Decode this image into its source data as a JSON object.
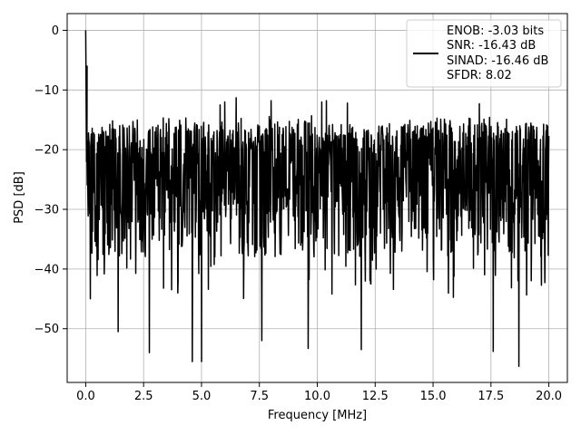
{
  "chart_data": {
    "type": "line",
    "title": "",
    "xlabel": "Frequency [MHz]",
    "ylabel": "PSD [dB]",
    "xlim": [
      -0.8,
      20.8
    ],
    "ylim": [
      -59.0,
      2.8
    ],
    "xticks": [
      0.0,
      2.5,
      5.0,
      7.5,
      10.0,
      12.5,
      15.0,
      17.5,
      20.0
    ],
    "xtick_labels": [
      "0.0",
      "2.5",
      "5.0",
      "7.5",
      "10.0",
      "12.5",
      "15.0",
      "17.5",
      "20.0"
    ],
    "yticks": [
      0,
      -10,
      -20,
      -30,
      -40,
      -50
    ],
    "ytick_labels": [
      "0",
      "−10",
      "−20",
      "−30",
      "−40",
      "−50"
    ],
    "grid": true,
    "legend_position": "top-right",
    "legend": {
      "lines": [
        "ENOB: -3.03 bits",
        "SNR: -16.43 dB",
        "SINAD: -16.46 dB",
        "SFDR: 8.02"
      ]
    },
    "series": [
      {
        "color": "#000000",
        "x_range": [
          0.0,
          20.0
        ],
        "num_points": 1500,
        "typical_band_db": [
          -35,
          -16
        ],
        "mean_db": -26,
        "peak": {
          "x": 0.0,
          "y": 0.0
        },
        "near_dc": [
          {
            "x": 0.02,
            "y": -11
          },
          {
            "x": 0.04,
            "y": -22
          },
          {
            "x": 0.06,
            "y": -6
          }
        ],
        "notable_maxima": [
          {
            "x": 5.0,
            "y": -12.5
          },
          {
            "x": 5.8,
            "y": -12.5
          },
          {
            "x": 6.0,
            "y": -12
          },
          {
            "x": 6.5,
            "y": -11.3
          },
          {
            "x": 8.0,
            "y": -11.8
          },
          {
            "x": 10.2,
            "y": -12
          },
          {
            "x": 10.4,
            "y": -11.8
          },
          {
            "x": 11.3,
            "y": -12.2
          },
          {
            "x": 17.0,
            "y": -12.3
          }
        ],
        "notable_minima": [
          {
            "x": 1.4,
            "y": -50.5
          },
          {
            "x": 2.75,
            "y": -54
          },
          {
            "x": 4.6,
            "y": -55.5
          },
          {
            "x": 5.0,
            "y": -55.5
          },
          {
            "x": 7.6,
            "y": -52
          },
          {
            "x": 9.6,
            "y": -53.3
          },
          {
            "x": 11.9,
            "y": -53.5
          },
          {
            "x": 17.6,
            "y": -53.8
          },
          {
            "x": 18.7,
            "y": -56.3
          }
        ]
      }
    ]
  }
}
